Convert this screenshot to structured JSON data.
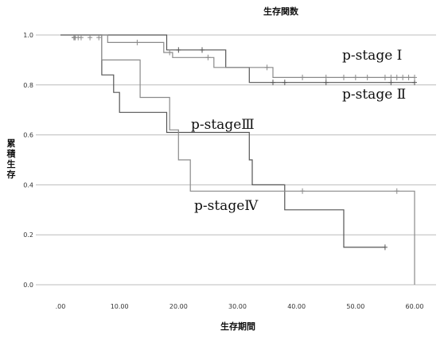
{
  "chart_data": {
    "type": "line",
    "subtype": "kaplan-meier",
    "title": "生存関数",
    "xlabel": "生存期間",
    "ylabel": "累積生存",
    "xlim": [
      0,
      60
    ],
    "ylim": [
      0,
      1
    ],
    "x_ticks": [
      ".00",
      "10.00",
      "20.00",
      "30.00",
      "40.00",
      "50.00",
      "60.00"
    ],
    "y_ticks": [
      "0.0",
      "0.2",
      "0.4",
      "0.6",
      "0.8",
      "1.0"
    ],
    "grid": "horizontal",
    "annotations": [
      "p-stage Ⅰ",
      "p-stage Ⅱ",
      "p-stageⅢ",
      "p-stageⅣ"
    ],
    "series": [
      {
        "key": "stage1",
        "color": "#555555",
        "steps": [
          [
            0,
            1.0
          ],
          [
            18,
            1.0
          ],
          [
            18,
            0.94
          ],
          [
            28,
            0.94
          ],
          [
            28,
            0.87
          ],
          [
            32,
            0.87
          ],
          [
            32,
            0.81
          ],
          [
            60,
            0.81
          ]
        ],
        "censored": [
          [
            2.3,
            0.99
          ],
          [
            20,
            0.94
          ],
          [
            24,
            0.94
          ],
          [
            36,
            0.81
          ],
          [
            38,
            0.81
          ],
          [
            45,
            0.81
          ],
          [
            56,
            0.81
          ],
          [
            60,
            0.81
          ]
        ]
      },
      {
        "key": "stage2",
        "color": "#8a8a8a",
        "steps": [
          [
            0,
            1.0
          ],
          [
            8,
            1.0
          ],
          [
            8,
            0.97
          ],
          [
            17.5,
            0.97
          ],
          [
            17.5,
            0.93
          ],
          [
            19,
            0.93
          ],
          [
            19,
            0.91
          ],
          [
            26,
            0.91
          ],
          [
            26,
            0.87
          ],
          [
            36,
            0.87
          ],
          [
            36,
            0.83
          ],
          [
            60,
            0.83
          ]
        ],
        "censored": [
          [
            2.5,
            0.99
          ],
          [
            3,
            0.99
          ],
          [
            3.5,
            0.99
          ],
          [
            5,
            0.99
          ],
          [
            6.5,
            0.99
          ],
          [
            13,
            0.97
          ],
          [
            18.5,
            0.93
          ],
          [
            25,
            0.91
          ],
          [
            35,
            0.87
          ],
          [
            41,
            0.83
          ],
          [
            45,
            0.83
          ],
          [
            48,
            0.83
          ],
          [
            50,
            0.83
          ],
          [
            52,
            0.83
          ],
          [
            55,
            0.83
          ],
          [
            56,
            0.83
          ],
          [
            57,
            0.83
          ],
          [
            58,
            0.83
          ],
          [
            59,
            0.83
          ],
          [
            60,
            0.83
          ]
        ]
      },
      {
        "key": "stage3",
        "color": "#555555",
        "steps": [
          [
            0,
            1.0
          ],
          [
            7,
            1.0
          ],
          [
            7,
            0.84
          ],
          [
            9,
            0.84
          ],
          [
            9,
            0.77
          ],
          [
            10,
            0.77
          ],
          [
            10,
            0.69
          ],
          [
            18,
            0.69
          ],
          [
            18,
            0.61
          ],
          [
            32,
            0.61
          ],
          [
            32,
            0.5
          ],
          [
            32.5,
            0.5
          ],
          [
            32.5,
            0.4
          ],
          [
            38,
            0.4
          ],
          [
            38,
            0.3
          ],
          [
            48,
            0.3
          ],
          [
            48,
            0.15
          ],
          [
            55,
            0.15
          ]
        ],
        "censored": [
          [
            55,
            0.15
          ]
        ]
      },
      {
        "key": "stage4",
        "color": "#8a8a8a",
        "steps": [
          [
            0,
            1.0
          ],
          [
            7,
            1.0
          ],
          [
            7,
            0.9
          ],
          [
            13.5,
            0.9
          ],
          [
            13.5,
            0.75
          ],
          [
            18.5,
            0.75
          ],
          [
            18.5,
            0.62
          ],
          [
            20,
            0.62
          ],
          [
            20,
            0.5
          ],
          [
            22,
            0.5
          ],
          [
            22,
            0.375
          ],
          [
            60,
            0.375
          ],
          [
            60,
            0.0
          ]
        ],
        "censored": [
          [
            41,
            0.375
          ],
          [
            57,
            0.375
          ]
        ]
      }
    ]
  }
}
